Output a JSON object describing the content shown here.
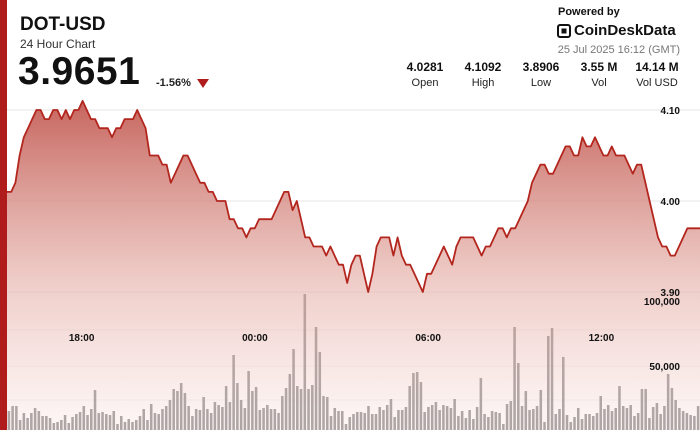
{
  "header": {
    "title": "DOT-USD",
    "subtitle": "24 Hour Chart",
    "price": "3.9651",
    "change": "-1.56%"
  },
  "brand": {
    "powered_by": "Powered by",
    "name": "CoinDeskData",
    "timestamp": "25 Jul 2025 16:12 (GMT)"
  },
  "stats": [
    {
      "value": "4.0281",
      "label": "Open"
    },
    {
      "value": "4.1092",
      "label": "High"
    },
    {
      "value": "3.8906",
      "label": "Low"
    },
    {
      "value": "3.55 M",
      "label": "Vol"
    },
    {
      "value": "14.14 M",
      "label": "Vol USD"
    }
  ],
  "colors": {
    "accent": "#b01c1c",
    "line": "#b3261e",
    "volume_bar": "#5f5f5f"
  },
  "chart_data": {
    "type": "line",
    "title": "",
    "xlabel": "",
    "ylabel": "",
    "x_ticks": [
      "18:00",
      "00:00",
      "06:00",
      "12:00"
    ],
    "x_tick_positions_hours": [
      3,
      9,
      15,
      21
    ],
    "y_ticks": [
      "4.10",
      "4.00",
      "3.90"
    ],
    "y_tick_values": [
      4.1,
      4.0,
      3.9
    ],
    "ylim": [
      3.885,
      4.12
    ],
    "x_range_hours": [
      0,
      24
    ],
    "price": [
      4.01,
      4.01,
      4.02,
      4.05,
      4.07,
      4.08,
      4.09,
      4.1,
      4.1,
      4.09,
      4.09,
      4.1,
      4.1,
      4.09,
      4.1,
      4.09,
      4.1,
      4.1,
      4.11,
      4.1,
      4.09,
      4.09,
      4.08,
      4.08,
      4.08,
      4.07,
      4.08,
      4.08,
      4.09,
      4.09,
      4.09,
      4.1,
      4.09,
      4.08,
      4.05,
      4.05,
      4.05,
      4.04,
      4.04,
      4.02,
      4.03,
      4.04,
      4.05,
      4.05,
      4.04,
      4.03,
      4.02,
      4.02,
      4.01,
      4.01,
      4.0,
      4.0,
      4.0,
      3.98,
      3.98,
      3.97,
      3.97,
      3.96,
      3.97,
      3.97,
      3.98,
      3.98,
      3.98,
      3.98,
      3.99,
      4.0,
      4.01,
      4.01,
      3.99,
      4.0,
      3.98,
      3.96,
      3.96,
      3.95,
      3.95,
      3.95,
      3.94,
      3.95,
      3.94,
      3.93,
      3.93,
      3.91,
      3.93,
      3.94,
      3.94,
      3.92,
      3.9,
      3.92,
      3.95,
      3.96,
      3.96,
      3.96,
      3.94,
      3.96,
      3.94,
      3.93,
      3.93,
      3.92,
      3.91,
      3.9,
      3.92,
      3.92,
      3.93,
      3.94,
      3.95,
      3.94,
      3.93,
      3.95,
      3.96,
      3.96,
      3.96,
      3.96,
      3.95,
      3.94,
      3.95,
      3.95,
      3.96,
      3.97,
      3.97,
      3.96,
      3.97,
      3.97,
      3.98,
      3.99,
      4.0,
      4.02,
      4.03,
      4.04,
      4.04,
      4.03,
      4.03,
      4.04,
      4.05,
      4.06,
      4.06,
      4.05,
      4.05,
      4.07,
      4.06,
      4.06,
      4.07,
      4.06,
      4.05,
      4.05,
      4.06,
      4.05,
      4.05,
      4.05,
      4.04,
      4.03,
      4.04,
      4.04,
      4.02,
      4.0,
      3.98,
      3.96,
      3.95,
      3.95,
      3.94,
      3.94,
      3.95,
      3.96,
      3.97,
      3.97,
      3.97,
      3.97
    ],
    "volume": [
      19,
      24,
      24,
      10,
      17,
      12,
      17,
      22,
      19,
      14,
      14,
      12,
      7,
      8,
      10,
      15,
      7,
      13,
      16,
      18,
      24,
      15,
      21,
      40,
      17,
      18,
      16,
      15,
      19,
      6,
      14,
      8,
      11,
      8,
      10,
      14,
      21,
      10,
      26,
      17,
      16,
      21,
      24,
      30,
      41,
      39,
      47,
      37,
      24,
      14,
      21,
      20,
      33,
      21,
      17,
      28,
      25,
      23,
      44,
      28,
      75,
      47,
      30,
      22,
      59,
      39,
      43,
      20,
      22,
      25,
      21,
      21,
      17,
      34,
      42,
      56,
      81,
      44,
      41,
      136,
      41,
      45,
      103,
      78,
      34,
      33,
      14,
      22,
      19,
      19,
      6,
      13,
      16,
      18,
      18,
      17,
      24,
      16,
      16,
      23,
      20,
      25,
      31,
      13,
      20,
      20,
      23,
      44,
      57,
      58,
      48,
      18,
      23,
      25,
      28,
      20,
      25,
      24,
      22,
      31,
      14,
      19,
      12,
      20,
      11,
      23,
      52,
      16,
      13,
      19,
      18,
      17,
      6,
      26,
      29,
      103,
      67,
      24,
      39,
      20,
      21,
      24,
      40,
      8,
      94,
      102,
      16,
      21,
      73,
      15,
      8,
      13,
      22,
      11,
      16,
      16,
      14,
      17,
      34,
      21,
      25,
      19,
      22,
      44,
      24,
      22,
      25,
      14,
      17,
      41,
      41,
      12,
      23,
      27,
      16,
      24,
      56,
      42,
      30,
      22,
      19,
      17,
      15,
      14,
      24
    ],
    "volume_ticks": [
      "100,000",
      "50,000"
    ],
    "volume_tick_values": [
      100000,
      50000
    ]
  }
}
